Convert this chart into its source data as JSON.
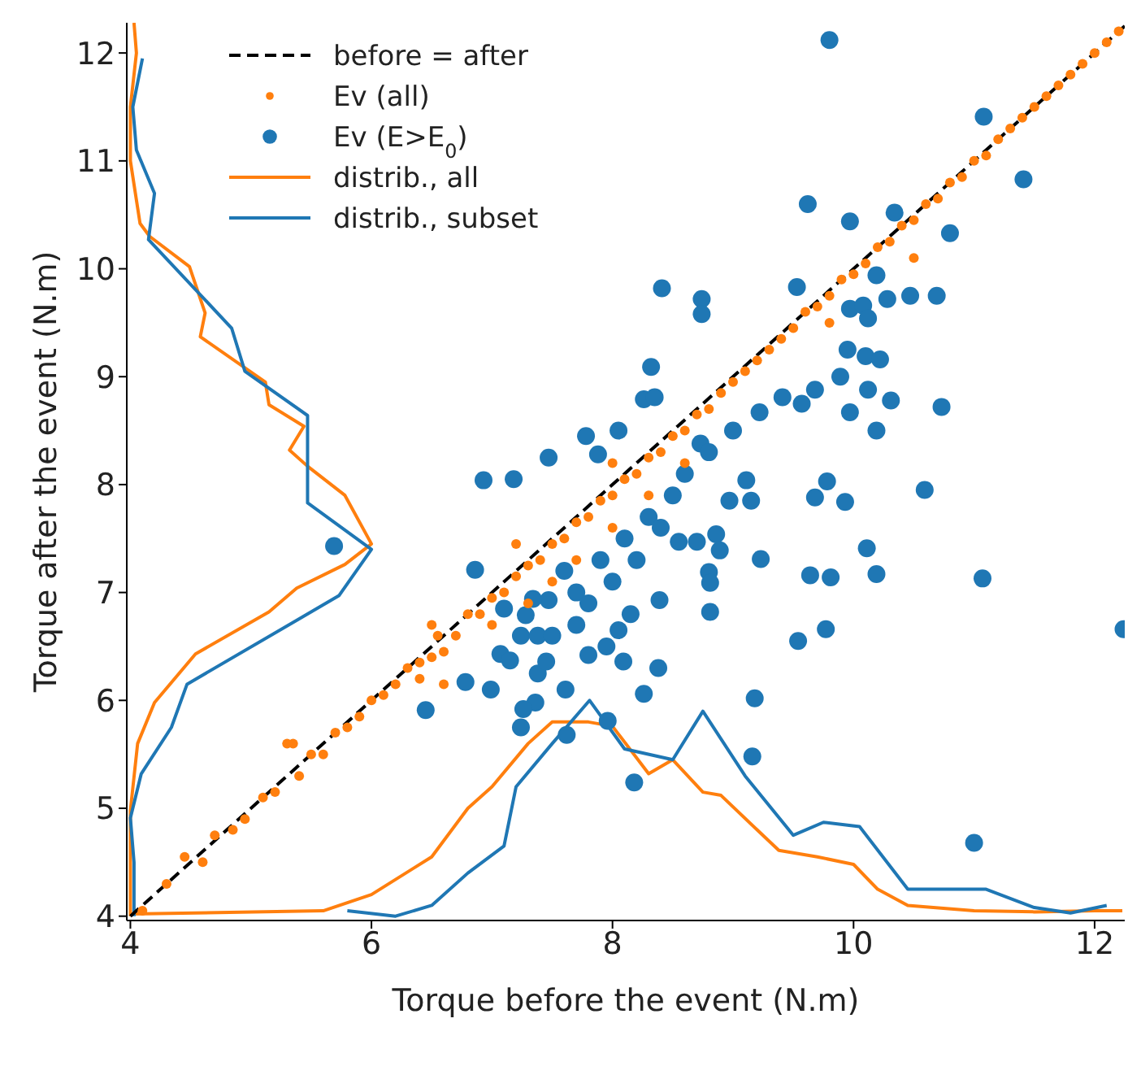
{
  "chart_data": {
    "type": "scatter",
    "xlabel": "Torque before the event (N.m)",
    "ylabel": "Torque after the event (N.m)",
    "xlim": [
      3.97,
      12.25
    ],
    "ylim": [
      3.96,
      12.28
    ],
    "xticks": [
      4,
      6,
      8,
      10,
      12
    ],
    "yticks": [
      4,
      5,
      6,
      7,
      8,
      9,
      10,
      11,
      12
    ],
    "legend": "top left",
    "series": [
      {
        "name": "before = after",
        "type": "line",
        "color": "#000000",
        "line_style": "dashed",
        "x": [
          4.0,
          12.25
        ],
        "values": [
          4.0,
          12.25
        ]
      },
      {
        "name": "Ev (all)",
        "color": "#ff7f0e",
        "marker": "circle",
        "x": [
          4.1,
          4.3,
          4.45,
          4.6,
          4.7,
          4.85,
          4.95,
          5.1,
          5.2,
          5.35,
          5.4,
          5.5,
          5.6,
          5.7,
          5.8,
          5.9,
          6.0,
          6.1,
          6.2,
          6.3,
          6.4,
          6.5,
          6.55,
          6.6,
          6.7,
          6.8,
          6.9,
          7.0,
          7.1,
          7.2,
          7.3,
          7.4,
          7.5,
          7.6,
          7.7,
          7.8,
          7.9,
          8.0,
          8.1,
          8.2,
          8.3,
          8.4,
          8.5,
          8.6,
          8.7,
          8.8,
          8.9,
          9.0,
          9.1,
          9.2,
          9.3,
          9.4,
          9.5,
          9.6,
          9.7,
          9.8,
          9.9,
          10.0,
          10.1,
          10.2,
          10.3,
          10.4,
          10.5,
          10.6,
          10.7,
          10.8,
          10.9,
          11.0,
          11.1,
          11.2,
          11.3,
          11.4,
          11.5,
          11.6,
          11.7,
          11.8,
          11.9,
          12.0,
          12.1,
          12.2,
          6.5,
          5.3,
          6.6,
          7.0,
          7.3,
          7.5,
          7.7,
          8.0,
          8.3,
          8.6,
          6.4,
          10.5,
          9.8,
          7.2,
          8.0
        ],
        "values": [
          4.05,
          4.3,
          4.55,
          4.5,
          4.75,
          4.8,
          4.9,
          5.1,
          5.15,
          5.6,
          5.3,
          5.5,
          5.5,
          5.7,
          5.75,
          5.85,
          6.0,
          6.05,
          6.15,
          6.3,
          6.35,
          6.4,
          6.6,
          6.45,
          6.6,
          6.8,
          6.8,
          6.95,
          7.0,
          7.15,
          7.25,
          7.3,
          7.45,
          7.5,
          7.65,
          7.7,
          7.85,
          7.9,
          8.05,
          8.1,
          8.25,
          8.3,
          8.45,
          8.5,
          8.65,
          8.7,
          8.85,
          8.95,
          9.05,
          9.15,
          9.25,
          9.35,
          9.45,
          9.6,
          9.65,
          9.75,
          9.9,
          9.95,
          10.05,
          10.2,
          10.25,
          10.4,
          10.45,
          10.6,
          10.65,
          10.8,
          10.85,
          11.0,
          11.05,
          11.2,
          11.3,
          11.4,
          11.5,
          11.6,
          11.7,
          11.8,
          11.9,
          12.0,
          12.1,
          12.2,
          6.7,
          5.6,
          6.15,
          6.7,
          6.9,
          7.1,
          7.3,
          7.6,
          7.9,
          8.2,
          6.2,
          10.1,
          9.5,
          7.45,
          8.2
        ]
      },
      {
        "name": "Ev (E>E$_{0}$)",
        "color": "#1f77b4",
        "marker": "circle",
        "x": [
          9.8,
          11.08,
          11.41,
          9.62,
          9.97,
          10.34,
          10.8,
          8.41,
          8.74,
          8.74,
          9.53,
          10.19,
          9.97,
          10.08,
          10.12,
          10.28,
          10.47,
          10.69,
          9.95,
          10.1,
          10.22,
          8.32,
          9.89,
          10.12,
          10.31,
          9.97,
          10.73,
          10.19,
          9.68,
          9.57,
          9.41,
          9.22,
          9.78,
          9.68,
          9.93,
          10.59,
          7.78,
          8.05,
          7.88,
          8.26,
          8.35,
          8.73,
          9.11,
          8.97,
          9.15,
          6.93,
          7.18,
          7.47,
          10.11,
          10.19,
          9.64,
          9.81,
          11.07,
          9.54,
          9.77,
          12.24,
          9.23,
          8.86,
          8.89,
          8.8,
          8.81,
          8.81,
          8.55,
          8.7,
          8.39,
          8.05,
          8.09,
          8.38,
          8.26,
          9.18,
          9.16,
          8.18,
          11.0,
          7.8,
          7.61,
          7.62,
          7.96,
          5.69,
          6.86,
          6.45,
          6.78,
          6.99,
          7.24,
          7.36,
          7.38,
          7.26,
          7.07,
          7.15,
          7.24,
          7.38,
          7.45,
          7.28,
          7.47,
          7.34,
          7.6,
          7.7,
          7.8,
          7.9,
          8.0,
          8.1,
          8.2,
          8.3,
          8.4,
          8.5,
          7.7,
          7.95,
          8.15,
          7.5,
          8.6,
          8.8,
          9.0,
          7.1
        ],
        "values": [
          12.12,
          11.41,
          10.83,
          10.6,
          10.44,
          10.52,
          10.33,
          9.82,
          9.72,
          9.58,
          9.83,
          9.94,
          9.63,
          9.66,
          9.54,
          9.72,
          9.75,
          9.75,
          9.25,
          9.19,
          9.16,
          9.09,
          9.0,
          8.88,
          8.78,
          8.67,
          8.72,
          8.5,
          8.88,
          8.75,
          8.81,
          8.67,
          8.03,
          7.88,
          7.84,
          7.95,
          8.45,
          8.5,
          8.28,
          8.79,
          8.81,
          8.38,
          8.04,
          7.85,
          7.85,
          8.04,
          8.05,
          8.25,
          7.41,
          7.17,
          7.16,
          7.14,
          7.13,
          6.55,
          6.66,
          6.66,
          7.31,
          7.54,
          7.39,
          7.19,
          7.09,
          6.82,
          7.47,
          7.47,
          6.93,
          6.65,
          6.36,
          6.3,
          6.06,
          6.02,
          5.48,
          5.24,
          4.68,
          6.42,
          6.1,
          5.68,
          5.81,
          7.43,
          7.21,
          5.91,
          6.17,
          6.1,
          5.75,
          5.98,
          6.25,
          5.92,
          6.43,
          6.37,
          6.6,
          6.6,
          6.36,
          6.79,
          6.93,
          6.94,
          7.2,
          7.0,
          6.9,
          7.3,
          7.1,
          7.5,
          7.3,
          7.7,
          7.6,
          7.9,
          6.7,
          6.5,
          6.8,
          6.6,
          8.1,
          8.3,
          8.5,
          6.85
        ]
      },
      {
        "name": "distrib., all",
        "type": "line",
        "color": "#ff7f0e",
        "line_style": "solid",
        "x": [
          4.0,
          5.6,
          6.0,
          6.5,
          6.8,
          7.0,
          7.3,
          7.5,
          7.8,
          8.0,
          8.3,
          8.5,
          8.75,
          8.9,
          9.2,
          9.38,
          9.7,
          10.0,
          10.2,
          10.45,
          11.0,
          11.5,
          12.0,
          12.23
        ],
        "values": [
          4.02,
          4.05,
          4.2,
          4.55,
          5.0,
          5.2,
          5.6,
          5.8,
          5.8,
          5.76,
          5.32,
          5.45,
          5.15,
          5.12,
          4.8,
          4.61,
          4.55,
          4.48,
          4.25,
          4.1,
          4.05,
          4.04,
          4.05,
          4.05
        ]
      },
      {
        "name": "distrib., subset",
        "type": "line",
        "color": "#1f77b4",
        "line_style": "solid",
        "x": [
          5.8,
          6.2,
          6.5,
          6.8,
          7.1,
          7.2,
          7.5,
          7.81,
          8.1,
          8.5,
          8.75,
          9.1,
          9.5,
          9.75,
          10.05,
          10.45,
          11.1,
          11.5,
          11.8,
          12.1
        ],
        "values": [
          4.05,
          4.0,
          4.1,
          4.4,
          4.65,
          5.2,
          5.6,
          6.0,
          5.55,
          5.45,
          5.9,
          5.3,
          4.75,
          4.87,
          4.83,
          4.25,
          4.25,
          4.08,
          4.03,
          4.1
        ]
      },
      {
        "type": "line",
        "color": "#ff7f0e",
        "line_style": "solid",
        "x": [
          4.0,
          4.0,
          4.06,
          4.2,
          4.54,
          5.15,
          5.38,
          5.78,
          6.0,
          5.78,
          5.47,
          5.32,
          5.44,
          5.15,
          5.12,
          4.58,
          4.62,
          4.49,
          4.16,
          4.08,
          4.0,
          4.0,
          4.05,
          4.03
        ],
        "values": [
          4.0,
          4.98,
          5.6,
          5.98,
          6.43,
          6.82,
          7.04,
          7.26,
          7.45,
          7.9,
          8.17,
          8.32,
          8.54,
          8.74,
          8.95,
          9.37,
          9.59,
          10.02,
          10.3,
          10.42,
          11.0,
          11.5,
          12.0,
          12.28
        ]
      },
      {
        "type": "line",
        "color": "#1f77b4",
        "line_style": "solid",
        "x": [
          4.03,
          4.03,
          4.0,
          4.09,
          4.34,
          4.47,
          5.73,
          6.0,
          5.47,
          5.47,
          4.95,
          4.84,
          4.15,
          4.2,
          4.05,
          4.02,
          4.1
        ],
        "values": [
          4.0,
          4.5,
          4.91,
          5.32,
          5.75,
          6.15,
          6.97,
          7.4,
          7.83,
          8.64,
          9.05,
          9.45,
          10.27,
          10.7,
          11.1,
          11.5,
          11.95
        ]
      }
    ]
  }
}
